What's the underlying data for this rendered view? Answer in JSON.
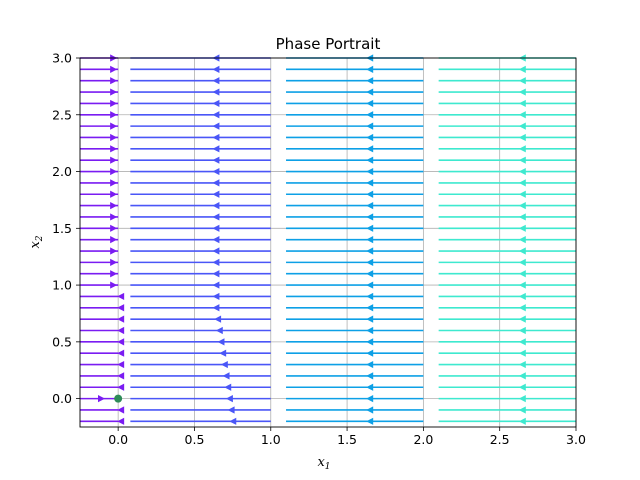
{
  "chart_data": {
    "type": "streamplot",
    "title": "Phase Portrait",
    "xlabel": "x",
    "xlabel_sub": "1",
    "ylabel": "x",
    "ylabel_sub": "2",
    "xlim": [
      -0.25,
      3.0
    ],
    "ylim": [
      -0.25,
      3.0
    ],
    "grid": true,
    "x_ticks": [
      0.0,
      0.5,
      1.0,
      1.5,
      2.0,
      2.5,
      3.0
    ],
    "x_tick_labels": [
      "0.0",
      "0.5",
      "1.0",
      "1.5",
      "2.0",
      "2.5",
      "3.0"
    ],
    "y_ticks": [
      0.0,
      0.5,
      1.0,
      1.5,
      2.0,
      2.5,
      3.0
    ],
    "y_tick_labels": [
      "0.0",
      "0.5",
      "1.0",
      "1.5",
      "2.0",
      "2.5",
      "3.0"
    ],
    "colormap": "rainbow (purple to cyan by x1)",
    "equilibrium_point": {
      "x": 0.0,
      "y": 0.0,
      "color": "#2e8b57"
    },
    "streamline_rows_y": [
      -0.2,
      -0.1,
      0.0,
      0.1,
      0.2,
      0.3,
      0.4,
      0.5,
      0.6,
      0.7,
      0.8,
      0.9,
      1.0,
      1.1,
      1.2,
      1.3,
      1.4,
      1.5,
      1.6,
      1.7,
      1.8,
      1.9,
      2.0,
      2.1,
      2.2,
      2.3,
      2.4,
      2.5,
      2.6,
      2.7,
      2.8,
      2.9,
      3.0
    ],
    "segments": [
      {
        "x_start": -0.25,
        "x_end": 0.0,
        "color": "#7a1cf2",
        "arrow_direction_above_y_0.95": "right",
        "arrow_direction_below_y_0.95": "left"
      },
      {
        "x_start": 0.08,
        "x_end": 1.0,
        "color": "#4a56f7",
        "arrow_direction": "left"
      },
      {
        "x_start": 1.1,
        "x_end": 2.0,
        "color": "#0da0e6",
        "arrow_direction": "left"
      },
      {
        "x_start": 2.1,
        "x_end": 3.0,
        "color": "#3ee9cf",
        "arrow_direction": "left"
      }
    ]
  }
}
